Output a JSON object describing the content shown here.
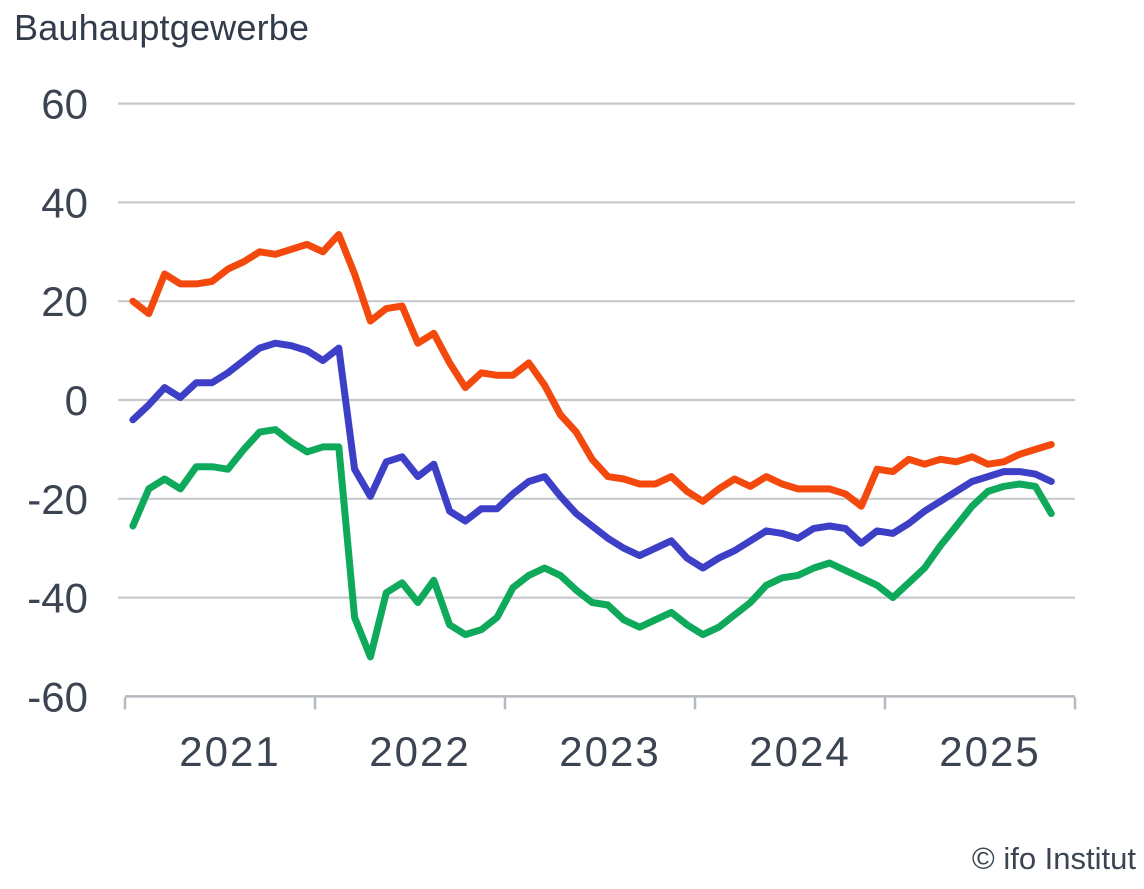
{
  "title": "Bauhauptgewerbe",
  "attribution": "© ifo Institut",
  "colors": {
    "orange": "#f4490d",
    "blue": "#3d40c6",
    "green": "#0fa95c",
    "gridline": "#c6c9ce",
    "axis": "#b5b9c0",
    "text": "#3c4451",
    "title_text": "#333c4b",
    "background": "#ffffff"
  },
  "chart_data": {
    "type": "line",
    "title": "Bauhauptgewerbe",
    "xlabel": "",
    "ylabel": "",
    "x_start": "2021-01",
    "x_end": "2025-11",
    "n_points": 59,
    "x_tick_years": [
      "2021",
      "2022",
      "2023",
      "2024",
      "2025"
    ],
    "y_ticks": [
      60,
      40,
      20,
      0,
      -20,
      -40,
      -60
    ],
    "ylim": [
      -60,
      60
    ],
    "grid": "horizontal",
    "legend": "none",
    "series": [
      {
        "name": "orange",
        "color": "#f4490d",
        "values": [
          20,
          17.5,
          25.5,
          23.5,
          23.5,
          24,
          26.5,
          28,
          30,
          29.5,
          30.5,
          31.5,
          30,
          33.5,
          25.5,
          16,
          18.5,
          19,
          11.5,
          13.5,
          7.5,
          2.5,
          5.5,
          5,
          5,
          7.5,
          3,
          -3,
          -6.5,
          -12,
          -15.5,
          -16,
          -17,
          -17,
          -15.5,
          -18.5,
          -20.5,
          -18,
          -16,
          -17.5,
          -15.5,
          -17,
          -18,
          -18,
          -18,
          -19,
          -21.5,
          -14,
          -14.5,
          -12,
          -13,
          -12,
          -12.5,
          -11.5,
          -13,
          -12.5,
          -11,
          -10,
          -9
        ]
      },
      {
        "name": "blue",
        "color": "#3d40c6",
        "values": [
          -4,
          -1,
          2.5,
          0.5,
          3.5,
          3.5,
          5.5,
          8,
          10.5,
          11.5,
          11,
          10,
          8,
          10.5,
          -14,
          -19.5,
          -12.5,
          -11.5,
          -15.5,
          -13,
          -22.5,
          -24.5,
          -22,
          -22,
          -19,
          -16.5,
          -15.5,
          -19.5,
          -23,
          -25.5,
          -28,
          -30,
          -31.5,
          -30,
          -28.5,
          -32,
          -34,
          -32,
          -30.5,
          -28.5,
          -26.5,
          -27,
          -28,
          -26,
          -25.5,
          -26,
          -29,
          -26.5,
          -27,
          -25,
          -22.5,
          -20.5,
          -18.5,
          -16.5,
          -15.5,
          -14.5,
          -14.5,
          -15,
          -16.5
        ]
      },
      {
        "name": "green",
        "color": "#0fa95c",
        "values": [
          -25.5,
          -18,
          -16,
          -18,
          -13.5,
          -13.5,
          -14,
          -10,
          -6.5,
          -6,
          -8.5,
          -10.5,
          -9.5,
          -9.5,
          -44,
          -52,
          -39,
          -37,
          -41,
          -36.5,
          -45.5,
          -47.5,
          -46.5,
          -44,
          -38,
          -35.5,
          -34,
          -35.5,
          -38.5,
          -41,
          -41.5,
          -44.5,
          -46,
          -44.5,
          -43,
          -45.5,
          -47.5,
          -46,
          -43.5,
          -41,
          -37.5,
          -36,
          -35.5,
          -34,
          -33,
          -34.5,
          -36,
          -37.5,
          -40,
          -37,
          -34,
          -29.5,
          -25.5,
          -21.5,
          -18.5,
          -17.5,
          -17,
          -17.5,
          -23
        ]
      }
    ]
  }
}
